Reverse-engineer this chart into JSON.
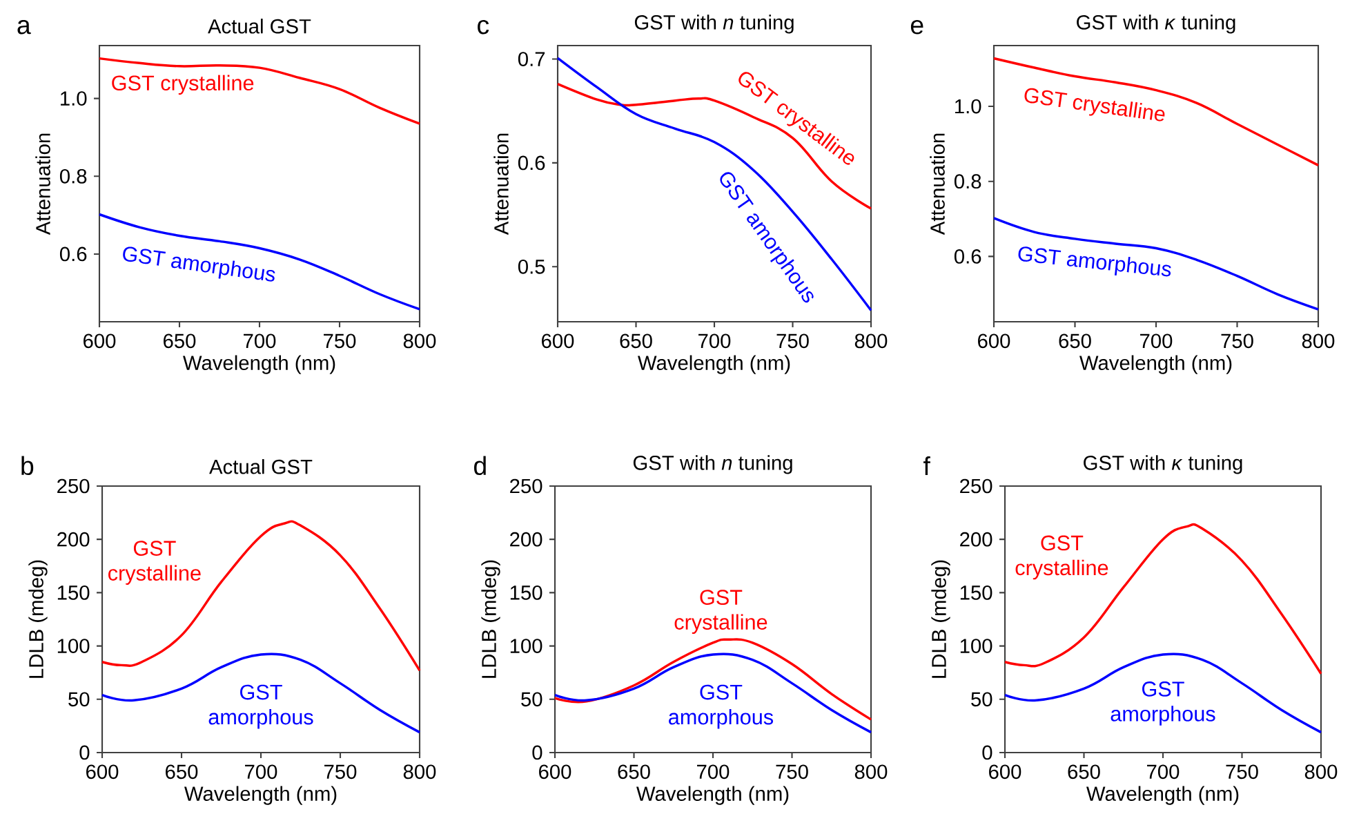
{
  "chart_data": [
    {
      "type": "line",
      "title": "Actual GST",
      "xlabel": "Wavelength (nm)",
      "ylabel": "Attenuation",
      "annotations": [
        "a"
      ],
      "xlim": [
        600,
        800
      ],
      "xticks": [
        600,
        650,
        700,
        750,
        800
      ],
      "ylim": [
        0.426,
        1.136
      ],
      "yticks": [
        0.6,
        0.8,
        {
          "value": 1.0,
          "label": "1.0"
        }
      ],
      "series": [
        {
          "name": "GST crystalline",
          "color": "#ff0000",
          "x": [
            600,
            625,
            650,
            675,
            700,
            725,
            750,
            775,
            800
          ],
          "values": [
            1.103,
            1.091,
            1.083,
            1.085,
            1.079,
            1.053,
            1.024,
            0.976,
            0.935
          ]
        },
        {
          "name": "GST amorphous",
          "color": "#0000ff",
          "x": [
            600,
            625,
            650,
            675,
            700,
            725,
            750,
            775,
            800
          ],
          "values": [
            0.702,
            0.669,
            0.647,
            0.633,
            0.615,
            0.586,
            0.544,
            0.497,
            0.458
          ]
        }
      ]
    },
    {
      "type": "line",
      "title": "GST with *n* tuning",
      "xlabel": "Wavelength (nm)",
      "ylabel": "Attenuation",
      "annotations": [
        "c"
      ],
      "xlim": [
        600,
        800
      ],
      "xticks": [
        600,
        650,
        700,
        750,
        800
      ],
      "ylim": [
        0.447,
        0.713
      ],
      "yticks": [
        0.5,
        0.6,
        0.7
      ],
      "series": [
        {
          "name": "GST crystalline",
          "color": "#ff0000",
          "x": [
            600,
            625,
            640,
            650,
            675,
            690,
            700,
            725,
            750,
            775,
            800
          ],
          "values": [
            0.676,
            0.661,
            0.656,
            0.656,
            0.66,
            0.662,
            0.66,
            0.644,
            0.624,
            0.582,
            0.556
          ]
        },
        {
          "name": "GST amorphous",
          "color": "#0000ff",
          "x": [
            600,
            625,
            650,
            675,
            700,
            725,
            750,
            775,
            800
          ],
          "values": [
            0.701,
            0.673,
            0.647,
            0.633,
            0.62,
            0.593,
            0.553,
            0.507,
            0.458
          ]
        }
      ]
    },
    {
      "type": "line",
      "title": "GST with *κ* tuning",
      "xlabel": "Wavelength (nm)",
      "ylabel": "Attenuation",
      "annotations": [
        "e"
      ],
      "xlim": [
        600,
        800
      ],
      "xticks": [
        600,
        650,
        700,
        750,
        800
      ],
      "ylim": [
        0.426,
        1.162
      ],
      "yticks": [
        0.6,
        0.8,
        {
          "value": 1.0,
          "label": "1.0"
        }
      ],
      "series": [
        {
          "name": "GST crystalline",
          "color": "#ff0000",
          "x": [
            600,
            625,
            650,
            675,
            700,
            725,
            750,
            775,
            800
          ],
          "values": [
            1.128,
            1.103,
            1.08,
            1.064,
            1.043,
            1.009,
            0.953,
            0.898,
            0.843
          ]
        },
        {
          "name": "GST amorphous",
          "color": "#0000ff",
          "x": [
            600,
            625,
            650,
            675,
            700,
            725,
            750,
            775,
            800
          ],
          "values": [
            0.702,
            0.665,
            0.647,
            0.634,
            0.622,
            0.591,
            0.548,
            0.499,
            0.459
          ]
        }
      ]
    },
    {
      "type": "line",
      "title": "Actual GST",
      "xlabel": "Wavelength (nm)",
      "ylabel": "LDLB (mdeg)",
      "annotations": [
        "b"
      ],
      "xlim": [
        600,
        800
      ],
      "xticks": [
        600,
        650,
        700,
        750,
        800
      ],
      "ylim": [
        0,
        250
      ],
      "yticks": [
        0,
        50,
        100,
        150,
        200,
        250
      ],
      "series": [
        {
          "name": "GST crystalline",
          "color": "#ff0000",
          "x": [
            600,
            612,
            625,
            650,
            675,
            700,
            715,
            725,
            750,
            775,
            800
          ],
          "values": [
            85,
            82,
            85,
            110,
            160,
            203,
            215,
            213,
            185,
            135,
            77
          ]
        },
        {
          "name": "GST amorphous",
          "color": "#0000ff",
          "x": [
            600,
            620,
            650,
            675,
            700,
            725,
            750,
            775,
            800
          ],
          "values": [
            54,
            49,
            60,
            80,
            92,
            87,
            65,
            40,
            19
          ]
        }
      ]
    },
    {
      "type": "line",
      "title": "GST with *n* tuning",
      "xlabel": "Wavelength (nm)",
      "ylabel": "LDLB (mdeg)",
      "annotations": [
        "d"
      ],
      "xlim": [
        600,
        800
      ],
      "xticks": [
        600,
        650,
        700,
        750,
        800
      ],
      "ylim": [
        0,
        250
      ],
      "yticks": [
        0,
        50,
        100,
        150,
        200,
        250
      ],
      "series": [
        {
          "name": "GST crystalline",
          "color": "#ff0000",
          "x": [
            600,
            620,
            650,
            675,
            700,
            710,
            725,
            750,
            775,
            800
          ],
          "values": [
            51,
            48,
            63,
            85,
            103,
            106,
            103,
            83,
            55,
            31
          ]
        },
        {
          "name": "GST amorphous",
          "color": "#0000ff",
          "x": [
            600,
            620,
            650,
            675,
            700,
            725,
            750,
            775,
            800
          ],
          "values": [
            54,
            49,
            60,
            80,
            92,
            87,
            65,
            40,
            19
          ]
        }
      ]
    },
    {
      "type": "line",
      "title": "GST with *κ* tuning",
      "xlabel": "Wavelength (nm)",
      "ylabel": "LDLB (mdeg)",
      "annotations": [
        "f"
      ],
      "xlim": [
        600,
        800
      ],
      "xticks": [
        600,
        650,
        700,
        750,
        800
      ],
      "ylim": [
        0,
        250
      ],
      "yticks": [
        0,
        50,
        100,
        150,
        200,
        250
      ],
      "series": [
        {
          "name": "GST crystalline",
          "color": "#ff0000",
          "x": [
            600,
            612,
            625,
            650,
            675,
            700,
            715,
            725,
            750,
            775,
            800
          ],
          "values": [
            85,
            82,
            84,
            108,
            155,
            200,
            212,
            210,
            180,
            130,
            74
          ]
        },
        {
          "name": "GST amorphous",
          "color": "#0000ff",
          "x": [
            600,
            620,
            650,
            675,
            700,
            725,
            750,
            775,
            800
          ],
          "values": [
            54,
            49,
            60,
            80,
            92,
            87,
            65,
            40,
            19
          ]
        }
      ]
    }
  ]
}
